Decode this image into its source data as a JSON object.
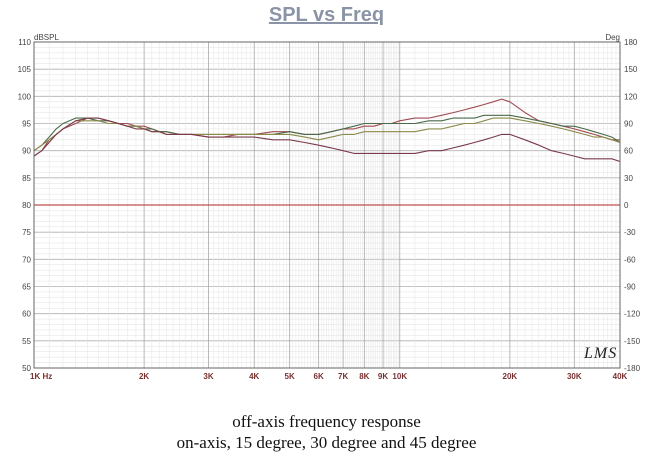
{
  "chart_data": {
    "type": "line",
    "title": "SPL vs Freq",
    "ylabel": "dBSPL",
    "y2label": "Deg",
    "xscale": "log",
    "xlim": [
      1000,
      40000
    ],
    "ylim": [
      50,
      110
    ],
    "y2lim": [
      -180,
      180
    ],
    "reference_line_y": 80,
    "grid": true,
    "x_ticks": [
      {
        "v": 1000,
        "label": "1K  Hz"
      },
      {
        "v": 2000,
        "label": "2K"
      },
      {
        "v": 3000,
        "label": "3K"
      },
      {
        "v": 4000,
        "label": "4K"
      },
      {
        "v": 5000,
        "label": "5K"
      },
      {
        "v": 6000,
        "label": "6K"
      },
      {
        "v": 7000,
        "label": "7K"
      },
      {
        "v": 8000,
        "label": "8K"
      },
      {
        "v": 9000,
        "label": "9K"
      },
      {
        "v": 10000,
        "label": "10K"
      },
      {
        "v": 20000,
        "label": "20K"
      },
      {
        "v": 30000,
        "label": "30K"
      },
      {
        "v": 40000,
        "label": "40K"
      }
    ],
    "y_ticks": [
      "110",
      "105",
      "100",
      "95",
      "90",
      "85",
      "80",
      "75",
      "70",
      "65",
      "60",
      "55",
      "50"
    ],
    "y2_ticks": [
      "180",
      "150",
      "120",
      "90",
      "60",
      "30",
      "0",
      "-30",
      "-60",
      "-90",
      "-120",
      "-150",
      "-180"
    ],
    "x": [
      1000,
      1050,
      1100,
      1150,
      1200,
      1300,
      1400,
      1500,
      1600,
      1700,
      1800,
      1900,
      2000,
      2100,
      2200,
      2300,
      2500,
      2700,
      3000,
      3300,
      3600,
      4000,
      4500,
      5000,
      5500,
      6000,
      6500,
      7000,
      7500,
      8000,
      8500,
      9000,
      9500,
      10000,
      11000,
      12000,
      13000,
      14000,
      15000,
      16000,
      17000,
      18000,
      19000,
      20000,
      22000,
      24000,
      26000,
      28000,
      30000,
      32000,
      34000,
      36000,
      38000,
      40000
    ],
    "series": [
      {
        "color": "#a04a52",
        "values": [
          89,
          90,
          92,
          93,
          94,
          95,
          96,
          96,
          95.5,
          95,
          95,
          94.5,
          94.5,
          94,
          93.5,
          93.5,
          93,
          93,
          92.5,
          92.5,
          93,
          93,
          93.5,
          93.5,
          93,
          93,
          93.5,
          94,
          94,
          94.5,
          94.5,
          95,
          95,
          95.5,
          96,
          96,
          96.5,
          97,
          97.5,
          98,
          98.5,
          99,
          99.5,
          99,
          97,
          95.5,
          95,
          94.5,
          94,
          93.5,
          93,
          92.5,
          92,
          92
        ]
      },
      {
        "color": "#4a6a4a",
        "values": [
          90,
          91,
          92.5,
          94,
          95,
          96,
          96,
          95.5,
          95.5,
          95,
          94.5,
          94.5,
          94,
          94,
          93.5,
          93.5,
          93,
          93,
          93,
          93,
          93,
          93,
          93,
          93.5,
          93,
          93,
          93.5,
          94,
          94.5,
          95,
          95,
          95,
          95,
          95,
          95,
          95.5,
          95.5,
          96,
          96,
          96,
          96.5,
          96.5,
          96.5,
          96.5,
          96,
          95.5,
          95,
          94.5,
          94.5,
          94,
          93.5,
          93,
          92.5,
          91.5
        ]
      },
      {
        "color": "#8a8a4a",
        "values": [
          90,
          91,
          92,
          93,
          94,
          95.5,
          95.5,
          95.5,
          95,
          95,
          94.5,
          94.5,
          94,
          93.5,
          93.5,
          93,
          93,
          93,
          93,
          93,
          93,
          93,
          93,
          93,
          92.5,
          92,
          92.5,
          93,
          93,
          93.5,
          93.5,
          93.5,
          93.5,
          93.5,
          93.5,
          94,
          94,
          94.5,
          95,
          95,
          95.5,
          96,
          96,
          96,
          95.5,
          95,
          94.5,
          94,
          93.5,
          93,
          92.5,
          92.5,
          92,
          91.5
        ]
      },
      {
        "color": "#7a3a4a",
        "values": [
          89,
          90,
          91.5,
          93,
          94,
          95.5,
          96,
          96,
          95.5,
          95,
          94.5,
          94,
          94,
          93.5,
          93.5,
          93,
          93,
          93,
          92.5,
          92.5,
          92.5,
          92.5,
          92,
          92,
          91.5,
          91,
          90.5,
          90,
          89.5,
          89.5,
          89.5,
          89.5,
          89.5,
          89.5,
          89.5,
          90,
          90,
          90.5,
          91,
          91.5,
          92,
          92.5,
          93,
          93,
          92,
          91,
          90,
          89.5,
          89,
          88.5,
          88.5,
          88.5,
          88.5,
          88
        ]
      }
    ]
  },
  "caption": {
    "line1": "off-axis frequency response",
    "line2": "on-axis, 15 degree, 30 degree and 45 degree"
  },
  "watermark": "LMS"
}
